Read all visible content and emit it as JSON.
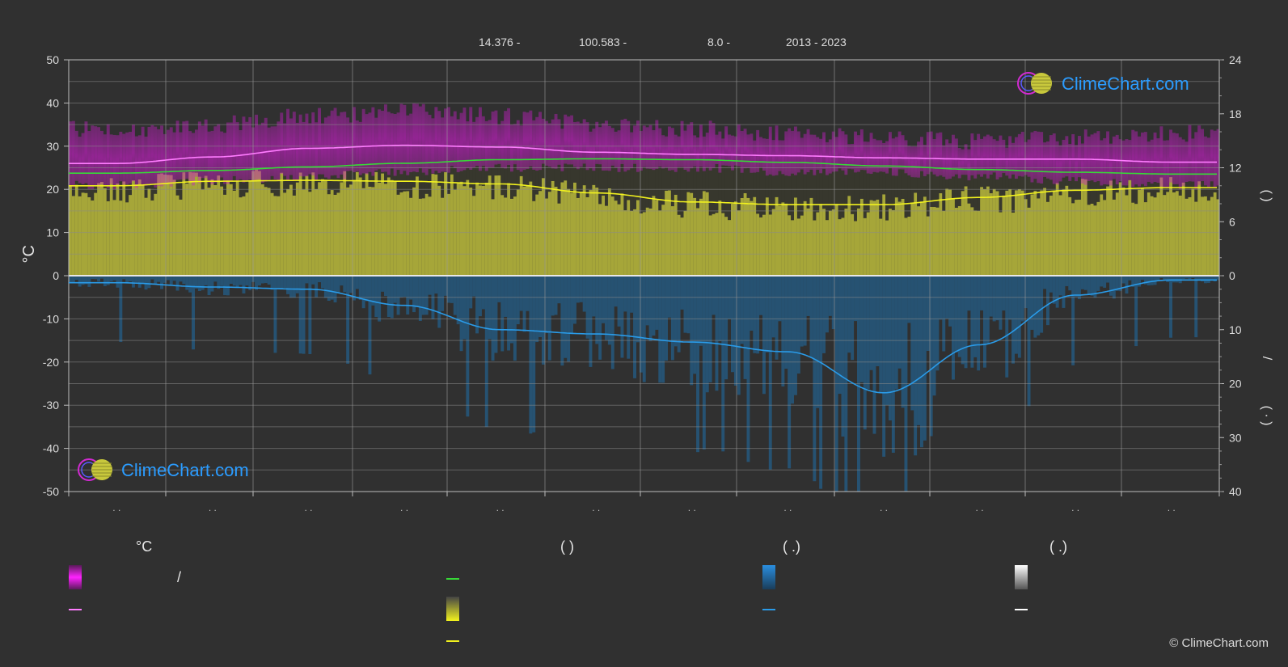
{
  "header": {
    "latitude": "14.376 -",
    "longitude": "100.583 -",
    "elevation": "8.0 -",
    "period": "2013 - 2023"
  },
  "watermark": {
    "text": "ClimeChart.com"
  },
  "copyright": "© ClimeChart.com",
  "legend": {
    "temp_heading": "°C",
    "sun_heading": "(          )",
    "rain_heading": "(    .)",
    "snow_heading": "(    .)",
    "temp_range_slash": "/"
  },
  "colors": {
    "background": "#303030",
    "temp_band": "#c21fc2",
    "temp_mean": "#ff7cff",
    "daylight": "#37d937",
    "sunshine": "#c8c83c",
    "sunshine_line": "#f2f21e",
    "rain": "#1f6faa",
    "rain_line": "#2a9be8",
    "snow": "#ffffff"
  },
  "chart_data": {
    "type": "line",
    "months": 12,
    "x_tick_labels": [
      ". .",
      ". .",
      ". .",
      ". .",
      ". .",
      ". .",
      ". .",
      ". .",
      ". .",
      ". .",
      ". .",
      ". ."
    ],
    "left_axis": {
      "label": "°C",
      "range": [
        -50,
        50
      ],
      "ticks": [
        50,
        40,
        30,
        20,
        10,
        0,
        -10,
        -20,
        -30,
        -40,
        -50
      ]
    },
    "right_axis_top": {
      "range": [
        0,
        24
      ],
      "ticks": [
        24,
        18,
        12,
        6,
        0
      ]
    },
    "right_axis_bottom": {
      "range": [
        0,
        40
      ],
      "ticks": [
        10,
        20,
        30,
        40
      ]
    },
    "right_axis_labels": [
      "(    )",
      "/",
      "(  ·  )"
    ],
    "series": [
      {
        "key": "temp_max_band",
        "unit": "°C",
        "values": [
          34,
          35,
          37,
          38,
          37,
          35,
          34,
          33,
          32,
          31,
          32,
          33
        ]
      },
      {
        "key": "temp_min_band",
        "unit": "°C",
        "values": [
          21,
          22,
          23,
          24,
          25,
          25,
          25,
          24,
          24,
          23,
          22,
          21
        ]
      },
      {
        "key": "temp_mean",
        "unit": "°C",
        "values": [
          26,
          27.5,
          29.5,
          30.2,
          29.8,
          28.6,
          28.1,
          27.8,
          27.3,
          27.0,
          27.0,
          26.3
        ]
      },
      {
        "key": "daylight",
        "unit": "h",
        "values": [
          11.4,
          11.7,
          12.1,
          12.5,
          12.9,
          13.0,
          12.9,
          12.6,
          12.2,
          11.8,
          11.5,
          11.3
        ]
      },
      {
        "key": "sunshine",
        "unit": "h",
        "values": [
          10.0,
          10.5,
          10.6,
          10.5,
          10.2,
          9.2,
          8.2,
          7.9,
          7.9,
          8.7,
          9.5,
          9.8
        ]
      },
      {
        "key": "precipitation",
        "unit": "mm/day",
        "values": [
          1.3,
          2.1,
          2.5,
          5.5,
          10.0,
          10.8,
          12.3,
          14.1,
          21.7,
          12.8,
          3.6,
          0.8
        ]
      }
    ]
  }
}
